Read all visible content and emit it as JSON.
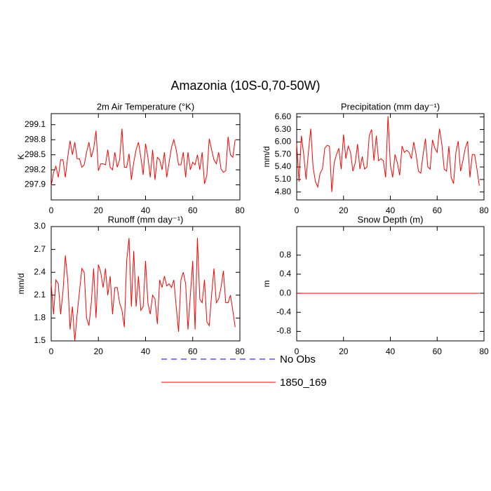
{
  "title": "Amazonia (10S-0,70-50W)",
  "legend": [
    {
      "name": "No Obs",
      "color": "#0000ff",
      "dash": true
    },
    {
      "name": "1850_169",
      "color": "#ff0000",
      "dash": false
    }
  ],
  "chart_data": [
    {
      "type": "line",
      "title": "2m Air Temperature (°K)",
      "y_label": "K",
      "color": "#ff0000",
      "xlim": [
        0,
        80
      ],
      "xticks": [
        0,
        20,
        40,
        60,
        80
      ],
      "ylim": [
        297.6,
        299.32
      ],
      "yticks": [
        297.9,
        298.2,
        298.5,
        298.8,
        299.1
      ],
      "x": [
        0,
        1,
        2,
        3,
        4,
        5,
        6,
        7,
        8,
        9,
        10,
        11,
        12,
        13,
        14,
        15,
        16,
        17,
        18,
        19,
        20,
        21,
        22,
        23,
        24,
        25,
        26,
        27,
        28,
        29,
        30,
        31,
        32,
        33,
        34,
        35,
        36,
        37,
        38,
        39,
        40,
        41,
        42,
        43,
        44,
        45,
        46,
        47,
        48,
        49,
        50,
        51,
        52,
        53,
        54,
        55,
        56,
        57,
        58,
        59,
        60,
        61,
        62,
        63,
        64,
        65,
        66,
        67,
        68,
        69,
        70,
        71,
        72,
        73,
        74,
        75,
        76,
        77,
        78
      ],
      "values": [
        297.88,
        298.15,
        298.27,
        298.05,
        298.4,
        298.4,
        298.05,
        298.45,
        298.78,
        298.5,
        298.75,
        298.42,
        298.42,
        298.25,
        298.3,
        298.55,
        298.75,
        298.45,
        298.62,
        298.98,
        298.18,
        298.32,
        298.32,
        298.3,
        298.6,
        298.25,
        298.2,
        298.55,
        298.25,
        298.4,
        299.02,
        298.25,
        298.25,
        298.52,
        298.0,
        298.35,
        298.6,
        298.75,
        298.45,
        298.1,
        298.72,
        298.45,
        298.05,
        298.6,
        298.0,
        298.45,
        298.4,
        298.2,
        298.55,
        298.05,
        298.35,
        298.65,
        298.8,
        298.6,
        298.3,
        298.3,
        298.55,
        298.05,
        298.55,
        298.2,
        298.35,
        298.3,
        298.5,
        298.2,
        298.55,
        297.92,
        298.1,
        298.82,
        298.6,
        298.4,
        298.32,
        298.55,
        298.22,
        298.15,
        298.18,
        298.86,
        298.5,
        298.45,
        298.8
      ]
    },
    {
      "type": "line",
      "title": "Precipitation (mm day⁻¹)",
      "y_label": "mm/d",
      "color": "#ff0000",
      "xlim": [
        0,
        80
      ],
      "xticks": [
        0,
        20,
        40,
        60,
        80
      ],
      "ylim": [
        4.61,
        6.68
      ],
      "yticks": [
        {
          "value": 4.8,
          "label": "4.80"
        },
        {
          "value": 5.1,
          "label": "5.10"
        },
        {
          "value": 5.4,
          "label": "5.40"
        },
        {
          "value": 5.7,
          "label": "5.70"
        },
        {
          "value": 6.0,
          "label": "6.00"
        },
        {
          "value": 6.3,
          "label": "6.30"
        },
        {
          "value": 6.6,
          "label": "6.60"
        }
      ],
      "x": [
        0,
        1,
        2,
        3,
        4,
        5,
        6,
        7,
        8,
        9,
        10,
        11,
        12,
        13,
        14,
        15,
        16,
        17,
        18,
        19,
        20,
        21,
        22,
        23,
        24,
        25,
        26,
        27,
        28,
        29,
        30,
        31,
        32,
        33,
        34,
        35,
        36,
        37,
        38,
        39,
        40,
        41,
        42,
        43,
        44,
        45,
        46,
        47,
        48,
        49,
        50,
        51,
        52,
        53,
        54,
        55,
        56,
        57,
        58,
        59,
        60,
        61,
        62,
        63,
        64,
        65,
        66,
        67,
        68,
        69,
        70,
        71,
        72,
        73,
        74,
        75,
        76,
        77,
        78
      ],
      "values": [
        5.95,
        5.05,
        6.15,
        5.7,
        5.1,
        5.75,
        6.32,
        5.4,
        5.05,
        4.92,
        5.25,
        5.35,
        5.85,
        5.92,
        5.9,
        4.8,
        5.5,
        5.7,
        5.85,
        5.35,
        6.18,
        5.6,
        5.9,
        5.75,
        5.3,
        5.5,
        5.95,
        5.35,
        5.65,
        5.35,
        5.4,
        6.15,
        6.3,
        5.55,
        6.15,
        5.55,
        5.6,
        5.55,
        5.15,
        6.62,
        5.45,
        5.15,
        5.7,
        5.5,
        5.2,
        5.9,
        5.75,
        5.8,
        5.75,
        5.6,
        6.0,
        5.7,
        5.3,
        5.25,
        5.7,
        6.08,
        5.4,
        5.35,
        6.05,
        5.85,
        5.75,
        6.32,
        5.95,
        5.35,
        5.3,
        5.9,
        5.15,
        5.0,
        5.75,
        6.02,
        5.3,
        5.55,
        5.85,
        6.02,
        5.15,
        5.7,
        5.7,
        5.35,
        4.95
      ]
    },
    {
      "type": "line",
      "title": "Runoff (mm day⁻¹)",
      "y_label": "mm/d",
      "color": "#ff0000",
      "xlim": [
        0,
        80
      ],
      "xticks": [
        0,
        20,
        40,
        60,
        80
      ],
      "ylim": [
        1.5,
        3.0
      ],
      "yticks": [
        1.5,
        1.8,
        2.1,
        2.4,
        2.7,
        {
          "value": 3.0,
          "label": "3.0"
        }
      ],
      "x": [
        0,
        1,
        2,
        3,
        4,
        5,
        6,
        7,
        8,
        9,
        10,
        11,
        12,
        13,
        14,
        15,
        16,
        17,
        18,
        19,
        20,
        21,
        22,
        23,
        24,
        25,
        26,
        27,
        28,
        29,
        30,
        31,
        32,
        33,
        34,
        35,
        36,
        37,
        38,
        39,
        40,
        41,
        42,
        43,
        44,
        45,
        46,
        47,
        48,
        49,
        50,
        51,
        52,
        53,
        54,
        55,
        56,
        57,
        58,
        59,
        60,
        61,
        62,
        63,
        64,
        65,
        66,
        67,
        68,
        69,
        70,
        71,
        72,
        73,
        74,
        75,
        76,
        77,
        78
      ],
      "values": [
        2.25,
        1.85,
        2.3,
        2.25,
        1.85,
        2.15,
        2.62,
        2.3,
        1.65,
        1.95,
        1.5,
        1.85,
        2.15,
        2.45,
        2.4,
        1.8,
        1.7,
        2.0,
        2.45,
        1.8,
        2.5,
        2.4,
        2.2,
        2.45,
        2.1,
        2.35,
        1.85,
        2.2,
        2.2,
        2.0,
        1.9,
        1.68,
        2.55,
        2.85,
        1.95,
        2.68,
        1.95,
        2.35,
        1.9,
        1.95,
        2.55,
        2.0,
        1.85,
        2.1,
        2.05,
        1.72,
        2.3,
        2.2,
        2.35,
        2.22,
        2.25,
        2.2,
        2.3,
        1.95,
        1.62,
        2.3,
        2.4,
        2.25,
        1.65,
        2.1,
        2.55,
        1.65,
        2.85,
        2.05,
        2.0,
        2.3,
        1.75,
        1.7,
        2.1,
        2.45,
        2.0,
        2.05,
        2.2,
        2.42,
        2.0,
        2.0,
        2.1,
        1.9,
        1.68
      ]
    },
    {
      "type": "line",
      "title": "Snow Depth (m)",
      "y_label": "m",
      "color": "#ff0000",
      "xlim": [
        0,
        80
      ],
      "xticks": [
        0,
        20,
        40,
        60,
        80
      ],
      "ylim": [
        -1.0,
        1.4
      ],
      "yticks": [
        -0.8,
        -0.4,
        {
          "value": 0,
          "label": "0.0"
        },
        0.4,
        0.8
      ],
      "x": [
        0,
        1,
        2,
        3,
        4,
        5,
        6,
        7,
        8,
        9,
        10,
        11,
        12,
        13,
        14,
        15,
        16,
        17,
        18,
        19,
        20,
        21,
        22,
        23,
        24,
        25,
        26,
        27,
        28,
        29,
        30,
        31,
        32,
        33,
        34,
        35,
        36,
        37,
        38,
        39,
        40,
        41,
        42,
        43,
        44,
        45,
        46,
        47,
        48,
        49,
        50,
        51,
        52,
        53,
        54,
        55,
        56,
        57,
        58,
        59,
        60,
        61,
        62,
        63,
        64,
        65,
        66,
        67,
        68,
        69,
        70,
        71,
        72,
        73,
        74,
        75,
        76,
        77,
        78
      ],
      "values": [
        0,
        0,
        0,
        0,
        0,
        0,
        0,
        0,
        0,
        0,
        0,
        0,
        0,
        0,
        0,
        0,
        0,
        0,
        0,
        0,
        0,
        0,
        0,
        0,
        0,
        0,
        0,
        0,
        0,
        0,
        0,
        0,
        0,
        0,
        0,
        0,
        0,
        0,
        0,
        0,
        0,
        0,
        0,
        0,
        0,
        0,
        0,
        0,
        0,
        0,
        0,
        0,
        0,
        0,
        0,
        0,
        0,
        0,
        0,
        0,
        0,
        0,
        0,
        0,
        0,
        0,
        0,
        0,
        0,
        0,
        0,
        0,
        0,
        0,
        0,
        0,
        0,
        0,
        0
      ]
    }
  ]
}
